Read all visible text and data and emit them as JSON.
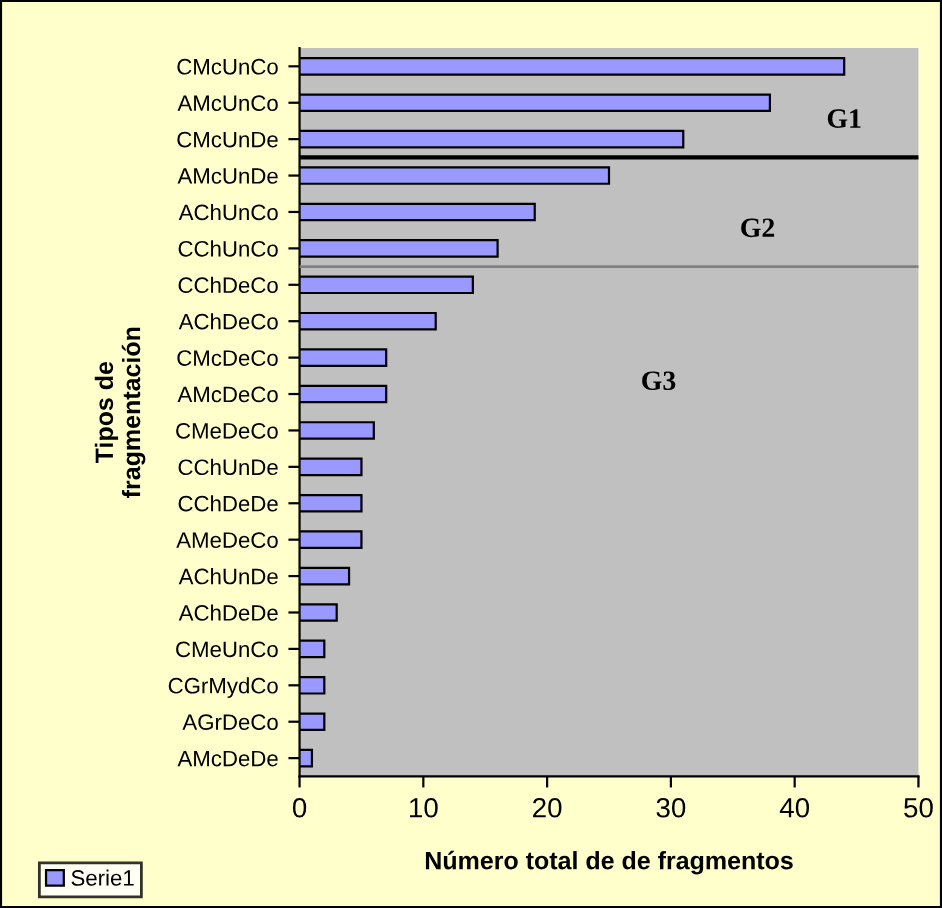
{
  "chart_data": {
    "type": "bar",
    "orientation": "horizontal",
    "xlabel": "Número total de de fragmentos",
    "ylabel": "Tipos de\nfragmentación",
    "categories": [
      "CMcUnCo",
      "AMcUnCo",
      "CMcUnDe",
      "AMcUnDe",
      "AChUnCo",
      "CChUnCo",
      "CChDeCo",
      "AChDeCo",
      "CMcDeCo",
      "AMcDeCo",
      "CMeDeCo",
      "CChUnDe",
      "CChDeDe",
      "AMeDeCo",
      "AChUnDe",
      "AChDeDe",
      "CMeUnCo",
      "CGrMydCo",
      "AGrDeCo",
      "AMcDeDe"
    ],
    "series": [
      {
        "name": "Serie1",
        "color": "#9999ff",
        "values": [
          44,
          38,
          31,
          25,
          19,
          16,
          14,
          11,
          7,
          7,
          6,
          5,
          5,
          5,
          4,
          3,
          2,
          2,
          2,
          1
        ]
      }
    ],
    "xlim": [
      0,
      50
    ],
    "xticks": [
      0,
      10,
      20,
      30,
      40,
      50
    ],
    "annotations": [
      "G1",
      "G2",
      "G3"
    ],
    "ref_lines": [
      {
        "axis": "y",
        "value": "AMcUnDe",
        "color": "#000000",
        "line_style": "solid"
      },
      {
        "axis": "y",
        "value": "CChDeCo",
        "color": "#808080",
        "line_style": "solid"
      }
    ],
    "grid": false,
    "legend": "bottom left"
  }
}
